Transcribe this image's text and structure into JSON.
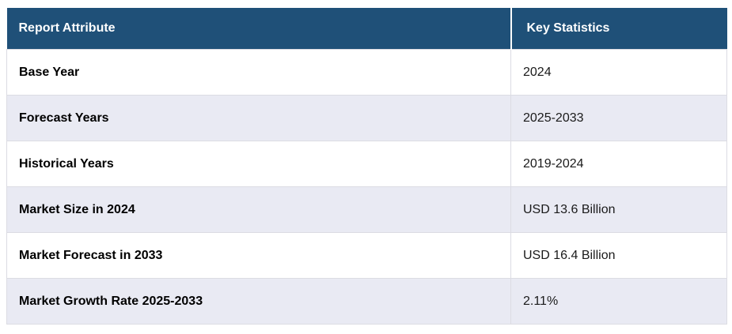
{
  "table": {
    "name": "report-key-statistics",
    "columns": [
      {
        "label": "Report Attribute"
      },
      {
        "label": "Key Statistics"
      }
    ],
    "rows": [
      {
        "attribute": "Base Year",
        "value": "2024"
      },
      {
        "attribute": "Forecast Years",
        "value": "2025-2033"
      },
      {
        "attribute": "Historical Years",
        "value": "2019-2024"
      },
      {
        "attribute": "Market Size in 2024",
        "value": "USD 13.6 Billion"
      },
      {
        "attribute": "Market Forecast in 2033",
        "value": "USD 16.4 Billion"
      },
      {
        "attribute": "Market Growth Rate 2025-2033",
        "value": "2.11%"
      }
    ],
    "colors": {
      "header_bg": "#1f5078",
      "header_text": "#ffffff",
      "row_bg": "#ffffff",
      "row_alt_bg": "#e9eaf3",
      "border": "#dcdce3"
    }
  }
}
